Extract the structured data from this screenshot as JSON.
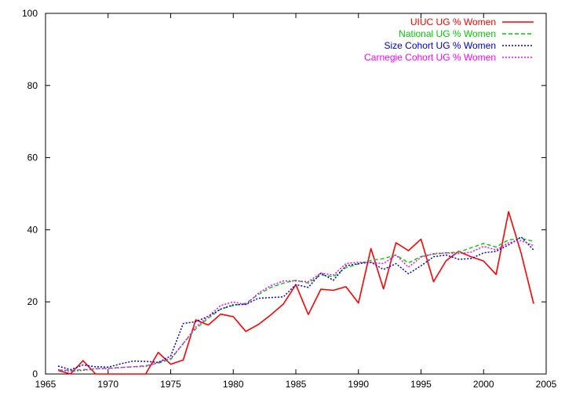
{
  "chart_data": {
    "type": "line",
    "title": "",
    "xlabel": "",
    "ylabel": "",
    "xlim": [
      1965,
      2005
    ],
    "ylim": [
      0,
      100
    ],
    "xticks": [
      1965,
      1970,
      1975,
      1980,
      1985,
      1990,
      1995,
      2000,
      2005
    ],
    "yticks": [
      0,
      20,
      40,
      60,
      80,
      100
    ],
    "x_tick_labels": [
      "1965",
      "1970",
      "1975",
      "1980",
      "1985",
      "1990",
      "1995",
      "2000",
      "2005"
    ],
    "y_tick_labels": [
      "0",
      "20",
      "40",
      "60",
      "80",
      "100"
    ],
    "grid": false,
    "legend_position": "top-right",
    "series": [
      {
        "name": "UIUC UG % Women",
        "color": "#ff0000",
        "dash": "solid",
        "x": [
          1966,
          1967,
          1968,
          1969,
          1970,
          1971,
          1972,
          1973,
          1974,
          1975,
          1976,
          1977,
          1978,
          1979,
          1980,
          1981,
          1982,
          1983,
          1984,
          1985,
          1986,
          1987,
          1988,
          1989,
          1990,
          1991,
          1992,
          1993,
          1994,
          1995,
          1996,
          1997,
          1998,
          1999,
          2000,
          2001,
          2002,
          2003,
          2004
        ],
        "y": [
          1,
          0,
          3.7,
          0,
          0,
          0,
          0,
          0,
          6,
          2.7,
          3.9,
          15,
          13.6,
          16.6,
          15.9,
          11.8,
          13.7,
          16.4,
          19.4,
          24.8,
          16.5,
          23.5,
          23.2,
          24.2,
          19.7,
          34.8,
          23.6,
          36.4,
          34.2,
          37.4,
          25.6,
          31.4,
          34,
          32.5,
          31.3,
          27.6,
          45,
          33.5,
          19.5
        ]
      },
      {
        "name": "National UG % Women",
        "color": "#00cc00",
        "dash": "dashed",
        "x": [
          1966,
          1967,
          1968,
          1969,
          1970,
          1971,
          1972,
          1973,
          1974,
          1975,
          1976,
          1977,
          1978,
          1979,
          1980,
          1981,
          1982,
          1983,
          1984,
          1985,
          1986,
          1987,
          1988,
          1989,
          1990,
          1991,
          1992,
          1993,
          1994,
          1995,
          1996,
          1997,
          1998,
          1999,
          2000,
          2001,
          2002,
          2003,
          2004
        ],
        "y": [
          1.1,
          1,
          1.2,
          1.4,
          1.6,
          1.8,
          2,
          2.3,
          3,
          4,
          8.5,
          12.5,
          15.5,
          18,
          19,
          19.6,
          22,
          24,
          25.2,
          26,
          25.2,
          27.5,
          27,
          29.5,
          30.5,
          31.5,
          32,
          33,
          30.8,
          32.6,
          33.2,
          33.6,
          33.8,
          35,
          36.2,
          35.2,
          37.2,
          37.6,
          36.8
        ]
      },
      {
        "name": "Size Cohort UG % Women",
        "color": "#0000cc",
        "dash": "dotted",
        "x": [
          1966,
          1967,
          1968,
          1969,
          1970,
          1971,
          1972,
          1973,
          1974,
          1975,
          1976,
          1977,
          1978,
          1979,
          1980,
          1981,
          1982,
          1983,
          1984,
          1985,
          1986,
          1987,
          1988,
          1989,
          1990,
          1991,
          1992,
          1993,
          1994,
          1995,
          1996,
          1997,
          1998,
          1999,
          2000,
          2001,
          2002,
          2003,
          2004
        ],
        "y": [
          2.2,
          1.2,
          2.5,
          2,
          1.9,
          2.8,
          3.6,
          3.5,
          3.2,
          5,
          14,
          14.5,
          16,
          18,
          19.2,
          19.3,
          21,
          21.2,
          21.4,
          24.8,
          24,
          28,
          26,
          30,
          30.6,
          31,
          29,
          30.6,
          27.8,
          30,
          32.5,
          33,
          31.8,
          32,
          33.6,
          34,
          35.8,
          38,
          34.4
        ]
      },
      {
        "name": "Carnegie Cohort UG % Women",
        "color": "#ff00ff",
        "dash": "dotted",
        "x": [
          1966,
          1967,
          1968,
          1969,
          1970,
          1971,
          1972,
          1973,
          1974,
          1975,
          1976,
          1977,
          1978,
          1979,
          1980,
          1981,
          1982,
          1983,
          1984,
          1985,
          1986,
          1987,
          1988,
          1989,
          1990,
          1991,
          1992,
          1993,
          1994,
          1995,
          1996,
          1997,
          1998,
          1999,
          2000,
          2001,
          2002,
          2003,
          2004
        ],
        "y": [
          1.2,
          0.8,
          1,
          1.5,
          1.5,
          1.8,
          2,
          2.1,
          3.2,
          4.3,
          8.4,
          13,
          16,
          19,
          20,
          19.2,
          22.4,
          24.5,
          25.8,
          25.8,
          25.6,
          28,
          27.4,
          30.6,
          31,
          30.9,
          30.6,
          33,
          29.6,
          32.4,
          33.4,
          33.6,
          33.4,
          33.8,
          35.4,
          34.4,
          36.4,
          37,
          35.6
        ]
      }
    ]
  }
}
